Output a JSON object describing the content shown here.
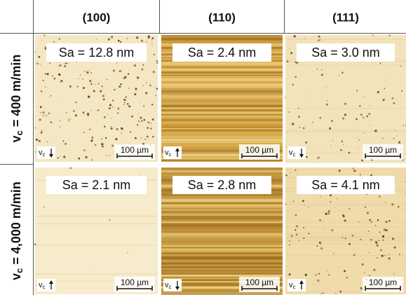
{
  "columns": [
    "(100)",
    "(110)",
    "(111)"
  ],
  "rows": [
    {
      "symbol": "v",
      "subscript": "c",
      "rest": "= 400 m/min",
      "cells": [
        {
          "sa": "Sa = 12.8 nm",
          "symbol": "v",
          "subscript": "c",
          "scale": "100 µm"
        },
        {
          "sa": "Sa = 2.4 nm",
          "symbol": "v",
          "subscript": "c",
          "scale": "100 µm"
        },
        {
          "sa": "Sa = 3.0 nm",
          "symbol": "v",
          "subscript": "c",
          "scale": "100 µm"
        }
      ]
    },
    {
      "symbol": "v",
      "subscript": "c",
      "rest": "= 4,000 m/min",
      "cells": [
        {
          "sa": "Sa = 2.1 nm",
          "symbol": "v",
          "subscript": "c",
          "scale": "100 µm"
        },
        {
          "sa": "Sa = 2.8 nm",
          "symbol": "v",
          "subscript": "c",
          "scale": "100 µm"
        },
        {
          "sa": "Sa = 4.1 nm",
          "symbol": "v",
          "subscript": "c",
          "scale": "100 µm"
        }
      ]
    }
  ]
}
